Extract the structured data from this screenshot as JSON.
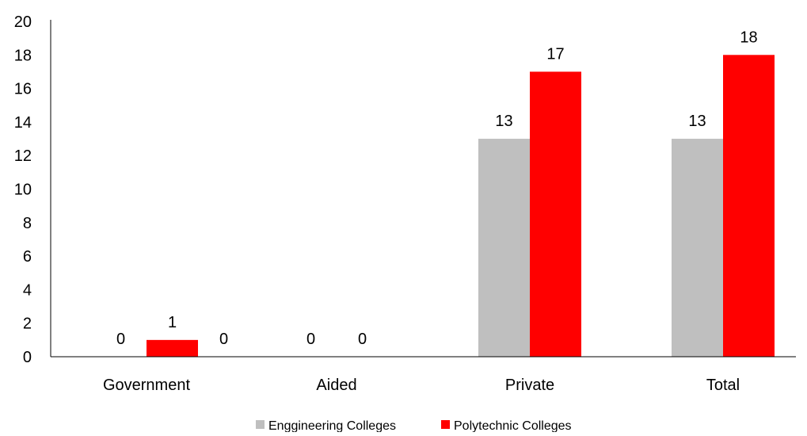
{
  "chart_data": {
    "type": "bar",
    "title": "",
    "xlabel": "",
    "ylabel": "",
    "ylim": [
      0,
      20
    ],
    "yticks": [
      0,
      2,
      4,
      6,
      8,
      10,
      12,
      14,
      16,
      18,
      20
    ],
    "grid": false,
    "legend_position": "bottom",
    "categories": [
      "Government",
      "Aided",
      "Private",
      "Total"
    ],
    "series": [
      {
        "name": "Enggineering Colleges",
        "color": "#bfbfbf",
        "values": [
          0,
          0,
          13,
          13
        ]
      },
      {
        "name": "Polytechnic Colleges",
        "color": "#ff0000",
        "values": [
          1,
          0,
          17,
          18
        ]
      }
    ],
    "data_labels": [
      {
        "text": "0",
        "category": 0,
        "series": 0
      },
      {
        "text": "1",
        "category": 0,
        "series": 1
      },
      {
        "text": "0",
        "category": 0,
        "series": 2
      },
      {
        "text": "0",
        "category": 1,
        "series": 0
      },
      {
        "text": "0",
        "category": 1,
        "series": 1
      },
      {
        "text": "13",
        "category": 2,
        "series": 0
      },
      {
        "text": "17",
        "category": 2,
        "series": 1
      },
      {
        "text": "13",
        "category": 3,
        "series": 0
      },
      {
        "text": "18",
        "category": 3,
        "series": 1
      }
    ]
  }
}
